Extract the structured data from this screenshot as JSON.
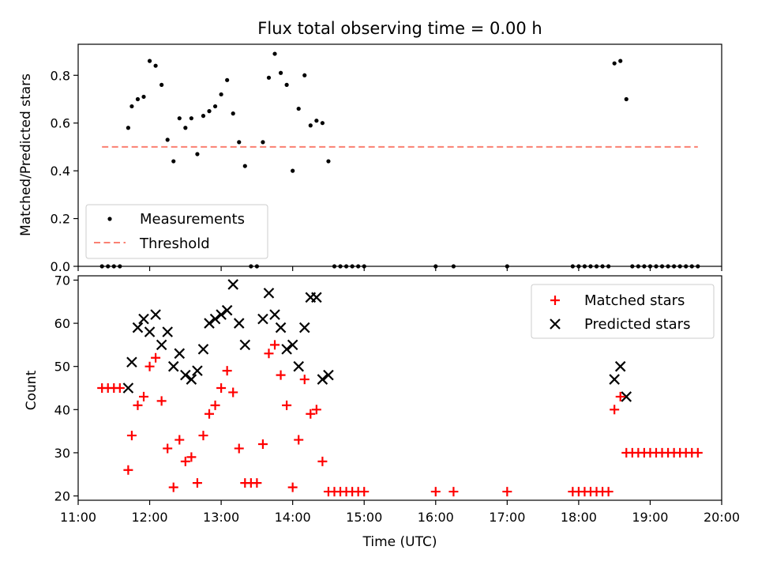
{
  "chart_data": [
    {
      "type": "scatter",
      "title": "Flux total observing time = 0.00 h",
      "xlabel": "",
      "ylabel": "Matched/Predicted stars",
      "xlim": [
        "11:00",
        "20:00"
      ],
      "ylim": [
        0,
        0.93
      ],
      "yticks": [
        "0.0",
        "0.2",
        "0.4",
        "0.6",
        "0.8"
      ],
      "legend_position": "lower-left",
      "colors": {
        "measurements": "#000000",
        "threshold": "#fa8072"
      },
      "series": [
        {
          "name": "Measurements",
          "points": [
            [
              "11:20",
              0
            ],
            [
              "11:25",
              0
            ],
            [
              "11:30",
              0
            ],
            [
              "11:35",
              0
            ],
            [
              "11:42",
              0.58
            ],
            [
              "11:45",
              0.67
            ],
            [
              "11:50",
              0.7
            ],
            [
              "11:55",
              0.71
            ],
            [
              "12:00",
              0.86
            ],
            [
              "12:05",
              0.84
            ],
            [
              "12:10",
              0.76
            ],
            [
              "12:15",
              0.53
            ],
            [
              "12:20",
              0.44
            ],
            [
              "12:25",
              0.62
            ],
            [
              "12:30",
              0.58
            ],
            [
              "12:35",
              0.62
            ],
            [
              "12:40",
              0.47
            ],
            [
              "12:45",
              0.63
            ],
            [
              "12:50",
              0.65
            ],
            [
              "12:55",
              0.67
            ],
            [
              "13:00",
              0.72
            ],
            [
              "13:05",
              0.78
            ],
            [
              "13:10",
              0.64
            ],
            [
              "13:15",
              0.52
            ],
            [
              "13:20",
              0.42
            ],
            [
              "13:25",
              0
            ],
            [
              "13:30",
              0
            ],
            [
              "13:35",
              0.52
            ],
            [
              "13:40",
              0.79
            ],
            [
              "13:45",
              0.89
            ],
            [
              "13:50",
              0.81
            ],
            [
              "13:55",
              0.76
            ],
            [
              "14:00",
              0.4
            ],
            [
              "14:05",
              0.66
            ],
            [
              "14:10",
              0.8
            ],
            [
              "14:15",
              0.59
            ],
            [
              "14:20",
              0.61
            ],
            [
              "14:25",
              0.6
            ],
            [
              "14:30",
              0.44
            ],
            [
              "14:35",
              0
            ],
            [
              "14:40",
              0
            ],
            [
              "14:45",
              0
            ],
            [
              "14:50",
              0
            ],
            [
              "14:55",
              0
            ],
            [
              "15:00",
              0
            ],
            [
              "16:00",
              0
            ],
            [
              "16:15",
              0
            ],
            [
              "17:00",
              0
            ],
            [
              "17:55",
              0
            ],
            [
              "18:00",
              0
            ],
            [
              "18:05",
              0
            ],
            [
              "18:10",
              0
            ],
            [
              "18:15",
              0
            ],
            [
              "18:20",
              0
            ],
            [
              "18:25",
              0
            ],
            [
              "18:30",
              0.85
            ],
            [
              "18:35",
              0.86
            ],
            [
              "18:40",
              0.7
            ],
            [
              "18:45",
              0
            ],
            [
              "18:50",
              0
            ],
            [
              "18:55",
              0
            ],
            [
              "19:00",
              0
            ],
            [
              "19:05",
              0
            ],
            [
              "19:10",
              0
            ],
            [
              "19:15",
              0
            ],
            [
              "19:20",
              0
            ],
            [
              "19:25",
              0
            ],
            [
              "19:30",
              0
            ],
            [
              "19:35",
              0
            ],
            [
              "19:40",
              0
            ]
          ]
        },
        {
          "name": "Threshold",
          "style": "dashed-line",
          "points": [
            [
              "11:20",
              0.5
            ],
            [
              "19:40",
              0.5
            ]
          ]
        }
      ]
    },
    {
      "type": "scatter",
      "title": "",
      "xlabel": "Time (UTC)",
      "ylabel": "Count",
      "xlim": [
        "11:00",
        "20:00"
      ],
      "ylim": [
        19,
        71
      ],
      "xticks": [
        "11:00",
        "12:00",
        "13:00",
        "14:00",
        "15:00",
        "16:00",
        "17:00",
        "18:00",
        "19:00",
        "20:00"
      ],
      "yticks": [
        "20",
        "30",
        "40",
        "50",
        "60",
        "70"
      ],
      "legend_position": "upper-right",
      "colors": {
        "matched": "#ff0000",
        "predicted": "#000000"
      },
      "series": [
        {
          "name": "Matched stars",
          "marker": "+",
          "points": [
            [
              "11:20",
              45
            ],
            [
              "11:25",
              45
            ],
            [
              "11:30",
              45
            ],
            [
              "11:35",
              45
            ],
            [
              "11:42",
              26
            ],
            [
              "11:45",
              34
            ],
            [
              "11:50",
              41
            ],
            [
              "11:55",
              43
            ],
            [
              "12:00",
              50
            ],
            [
              "12:05",
              52
            ],
            [
              "12:10",
              42
            ],
            [
              "12:15",
              31
            ],
            [
              "12:20",
              22
            ],
            [
              "12:25",
              33
            ],
            [
              "12:30",
              28
            ],
            [
              "12:35",
              29
            ],
            [
              "12:40",
              23
            ],
            [
              "12:45",
              34
            ],
            [
              "12:50",
              39
            ],
            [
              "12:55",
              41
            ],
            [
              "13:00",
              45
            ],
            [
              "13:05",
              49
            ],
            [
              "13:10",
              44
            ],
            [
              "13:15",
              31
            ],
            [
              "13:20",
              23
            ],
            [
              "13:25",
              23
            ],
            [
              "13:30",
              23
            ],
            [
              "13:35",
              32
            ],
            [
              "13:40",
              53
            ],
            [
              "13:45",
              55
            ],
            [
              "13:50",
              48
            ],
            [
              "13:55",
              41
            ],
            [
              "14:00",
              22
            ],
            [
              "14:05",
              33
            ],
            [
              "14:10",
              47
            ],
            [
              "14:15",
              39
            ],
            [
              "14:20",
              40
            ],
            [
              "14:25",
              28
            ],
            [
              "14:30",
              21
            ],
            [
              "14:35",
              21
            ],
            [
              "14:40",
              21
            ],
            [
              "14:45",
              21
            ],
            [
              "14:50",
              21
            ],
            [
              "14:55",
              21
            ],
            [
              "15:00",
              21
            ],
            [
              "16:00",
              21
            ],
            [
              "16:15",
              21
            ],
            [
              "17:00",
              21
            ],
            [
              "17:55",
              21
            ],
            [
              "18:00",
              21
            ],
            [
              "18:05",
              21
            ],
            [
              "18:10",
              21
            ],
            [
              "18:15",
              21
            ],
            [
              "18:20",
              21
            ],
            [
              "18:25",
              21
            ],
            [
              "18:30",
              40
            ],
            [
              "18:35",
              43
            ],
            [
              "18:40",
              30
            ],
            [
              "18:45",
              30
            ],
            [
              "18:50",
              30
            ],
            [
              "18:55",
              30
            ],
            [
              "19:00",
              30
            ],
            [
              "19:05",
              30
            ],
            [
              "19:10",
              30
            ],
            [
              "19:15",
              30
            ],
            [
              "19:20",
              30
            ],
            [
              "19:25",
              30
            ],
            [
              "19:30",
              30
            ],
            [
              "19:35",
              30
            ],
            [
              "19:40",
              30
            ]
          ]
        },
        {
          "name": "Predicted stars",
          "marker": "x",
          "points": [
            [
              "11:42",
              45
            ],
            [
              "11:45",
              51
            ],
            [
              "11:50",
              59
            ],
            [
              "11:55",
              61
            ],
            [
              "12:00",
              58
            ],
            [
              "12:05",
              62
            ],
            [
              "12:10",
              55
            ],
            [
              "12:15",
              58
            ],
            [
              "12:20",
              50
            ],
            [
              "12:25",
              53
            ],
            [
              "12:30",
              48
            ],
            [
              "12:35",
              47
            ],
            [
              "12:40",
              49
            ],
            [
              "12:45",
              54
            ],
            [
              "12:50",
              60
            ],
            [
              "12:55",
              61
            ],
            [
              "13:00",
              62
            ],
            [
              "13:05",
              63
            ],
            [
              "13:10",
              69
            ],
            [
              "13:15",
              60
            ],
            [
              "13:20",
              55
            ],
            [
              "13:35",
              61
            ],
            [
              "13:40",
              67
            ],
            [
              "13:45",
              62
            ],
            [
              "13:50",
              59
            ],
            [
              "13:55",
              54
            ],
            [
              "14:00",
              55
            ],
            [
              "14:05",
              50
            ],
            [
              "14:10",
              59
            ],
            [
              "14:15",
              66
            ],
            [
              "14:20",
              66
            ],
            [
              "14:25",
              47
            ],
            [
              "14:30",
              48
            ],
            [
              "18:30",
              47
            ],
            [
              "18:35",
              50
            ],
            [
              "18:40",
              43
            ]
          ]
        }
      ]
    }
  ]
}
